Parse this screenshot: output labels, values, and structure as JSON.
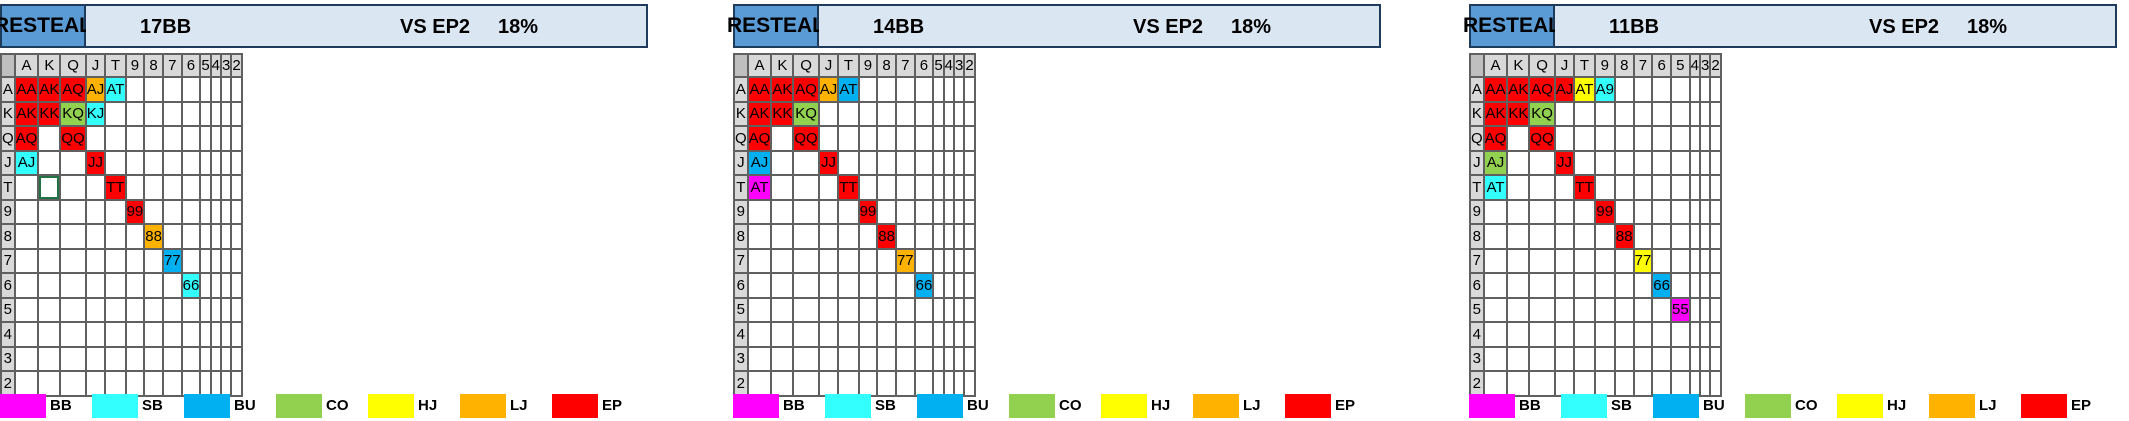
{
  "colors": {
    "EP": "#ff0000",
    "LJ": "#ffb300",
    "HJ": "#ffff00",
    "CO": "#92d050",
    "BU": "#00b0f0",
    "SB": "#33ffff",
    "BB": "#ff00ff"
  },
  "col_headers": [
    "A",
    "K",
    "Q",
    "J",
    "T",
    "9",
    "8",
    "7",
    "6",
    "5",
    "4",
    "3",
    "2"
  ],
  "row_headers": [
    "A",
    "K",
    "Q",
    "J",
    "T",
    "9",
    "8",
    "7",
    "6",
    "5",
    "4",
    "3",
    "2"
  ],
  "legend": [
    {
      "label": "BB",
      "color": "#ff00ff"
    },
    {
      "label": "SB",
      "color": "#33ffff"
    },
    {
      "label": "BU",
      "color": "#00b0f0"
    },
    {
      "label": "CO",
      "color": "#92d050"
    },
    {
      "label": "HJ",
      "color": "#ffff00"
    },
    {
      "label": "LJ",
      "color": "#ffb300"
    },
    {
      "label": "EP",
      "color": "#ff0000"
    }
  ],
  "charts": [
    {
      "title": "RESTEAL",
      "stack": "17BB",
      "versus": "VS EP2",
      "pct": "18%",
      "selected": [
        4,
        1
      ],
      "cells": [
        {
          "r": 0,
          "c": 0,
          "t": "AA",
          "p": "EP"
        },
        {
          "r": 0,
          "c": 1,
          "t": "AK",
          "p": "EP"
        },
        {
          "r": 0,
          "c": 2,
          "t": "AQ",
          "p": "EP"
        },
        {
          "r": 0,
          "c": 3,
          "t": "AJ",
          "p": "LJ"
        },
        {
          "r": 0,
          "c": 4,
          "t": "AT",
          "p": "SB"
        },
        {
          "r": 1,
          "c": 0,
          "t": "AK",
          "p": "EP"
        },
        {
          "r": 1,
          "c": 1,
          "t": "KK",
          "p": "EP"
        },
        {
          "r": 1,
          "c": 2,
          "t": "KQ",
          "p": "CO"
        },
        {
          "r": 1,
          "c": 3,
          "t": "KJ",
          "p": "SB"
        },
        {
          "r": 2,
          "c": 0,
          "t": "AQ",
          "p": "EP"
        },
        {
          "r": 2,
          "c": 2,
          "t": "QQ",
          "p": "EP"
        },
        {
          "r": 3,
          "c": 0,
          "t": "AJ",
          "p": "SB"
        },
        {
          "r": 3,
          "c": 3,
          "t": "JJ",
          "p": "EP"
        },
        {
          "r": 4,
          "c": 4,
          "t": "TT",
          "p": "EP"
        },
        {
          "r": 5,
          "c": 5,
          "t": "99",
          "p": "EP"
        },
        {
          "r": 6,
          "c": 6,
          "t": "88",
          "p": "LJ"
        },
        {
          "r": 7,
          "c": 7,
          "t": "77",
          "p": "BU"
        },
        {
          "r": 8,
          "c": 8,
          "t": "66",
          "p": "SB"
        }
      ]
    },
    {
      "title": "RESTEAL",
      "stack": "14BB",
      "versus": "VS EP2",
      "pct": "18%",
      "selected": null,
      "cells": [
        {
          "r": 0,
          "c": 0,
          "t": "AA",
          "p": "EP"
        },
        {
          "r": 0,
          "c": 1,
          "t": "AK",
          "p": "EP"
        },
        {
          "r": 0,
          "c": 2,
          "t": "AQ",
          "p": "EP"
        },
        {
          "r": 0,
          "c": 3,
          "t": "AJ",
          "p": "LJ"
        },
        {
          "r": 0,
          "c": 4,
          "t": "AT",
          "p": "BU"
        },
        {
          "r": 1,
          "c": 0,
          "t": "AK",
          "p": "EP"
        },
        {
          "r": 1,
          "c": 1,
          "t": "KK",
          "p": "EP"
        },
        {
          "r": 1,
          "c": 2,
          "t": "KQ",
          "p": "CO"
        },
        {
          "r": 2,
          "c": 0,
          "t": "AQ",
          "p": "EP"
        },
        {
          "r": 2,
          "c": 2,
          "t": "QQ",
          "p": "EP"
        },
        {
          "r": 3,
          "c": 0,
          "t": "AJ",
          "p": "BU"
        },
        {
          "r": 3,
          "c": 3,
          "t": "JJ",
          "p": "EP"
        },
        {
          "r": 4,
          "c": 0,
          "t": "AT",
          "p": "BB"
        },
        {
          "r": 4,
          "c": 4,
          "t": "TT",
          "p": "EP"
        },
        {
          "r": 5,
          "c": 5,
          "t": "99",
          "p": "EP"
        },
        {
          "r": 6,
          "c": 6,
          "t": "88",
          "p": "EP"
        },
        {
          "r": 7,
          "c": 7,
          "t": "77",
          "p": "LJ"
        },
        {
          "r": 8,
          "c": 8,
          "t": "66",
          "p": "BU"
        }
      ]
    },
    {
      "title": "RESTEAL",
      "stack": "11BB",
      "versus": "VS EP2",
      "pct": "18%",
      "selected": null,
      "cells": [
        {
          "r": 0,
          "c": 0,
          "t": "AA",
          "p": "EP"
        },
        {
          "r": 0,
          "c": 1,
          "t": "AK",
          "p": "EP"
        },
        {
          "r": 0,
          "c": 2,
          "t": "AQ",
          "p": "EP"
        },
        {
          "r": 0,
          "c": 3,
          "t": "AJ",
          "p": "EP"
        },
        {
          "r": 0,
          "c": 4,
          "t": "AT",
          "p": "HJ"
        },
        {
          "r": 0,
          "c": 5,
          "t": "A9",
          "p": "SB"
        },
        {
          "r": 1,
          "c": 0,
          "t": "AK",
          "p": "EP"
        },
        {
          "r": 1,
          "c": 1,
          "t": "KK",
          "p": "EP"
        },
        {
          "r": 1,
          "c": 2,
          "t": "KQ",
          "p": "CO"
        },
        {
          "r": 2,
          "c": 0,
          "t": "AQ",
          "p": "EP"
        },
        {
          "r": 2,
          "c": 2,
          "t": "QQ",
          "p": "EP"
        },
        {
          "r": 3,
          "c": 0,
          "t": "AJ",
          "p": "CO"
        },
        {
          "r": 3,
          "c": 3,
          "t": "JJ",
          "p": "EP"
        },
        {
          "r": 4,
          "c": 0,
          "t": "AT",
          "p": "SB"
        },
        {
          "r": 4,
          "c": 4,
          "t": "TT",
          "p": "EP"
        },
        {
          "r": 5,
          "c": 5,
          "t": "99",
          "p": "EP"
        },
        {
          "r": 6,
          "c": 6,
          "t": "88",
          "p": "EP"
        },
        {
          "r": 7,
          "c": 7,
          "t": "77",
          "p": "HJ"
        },
        {
          "r": 8,
          "c": 8,
          "t": "66",
          "p": "BU"
        },
        {
          "r": 9,
          "c": 9,
          "t": "55",
          "p": "BB"
        }
      ]
    }
  ]
}
